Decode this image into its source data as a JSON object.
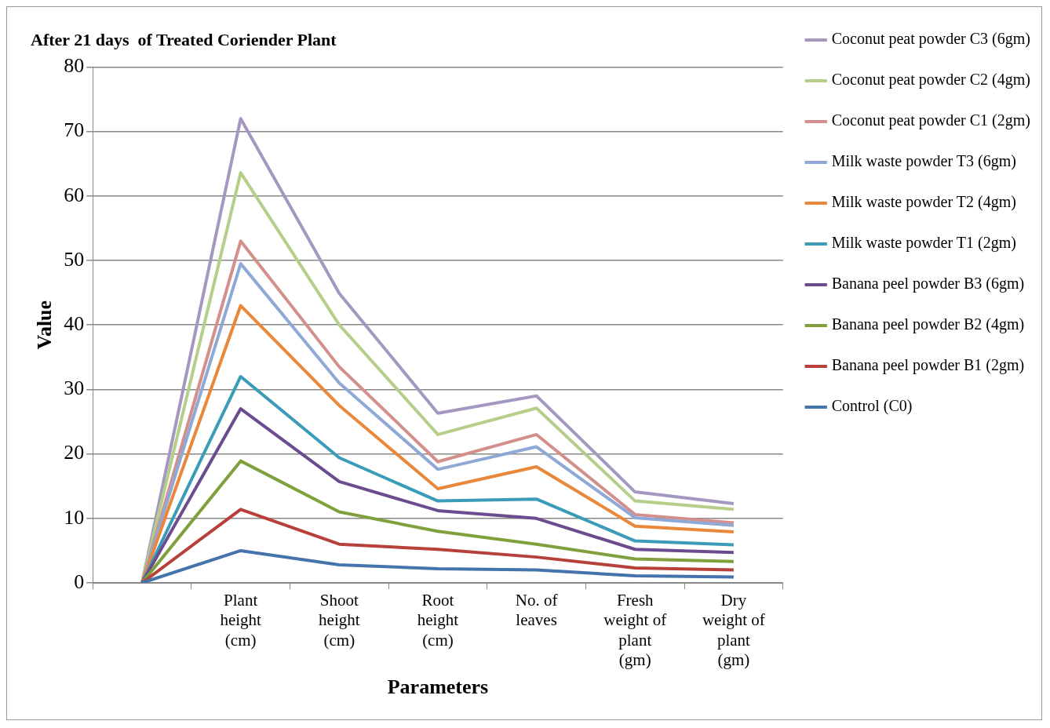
{
  "chart_data": {
    "type": "line",
    "title": "After 21 days  of Treated Coriender Plant",
    "xlabel": "Parameters",
    "ylabel": "Value",
    "categories": [
      null,
      "Plant height (cm)",
      "Shoot height (cm)",
      "Root height (cm)",
      "No. of leaves",
      "Fresh weight of plant (gm)",
      "Dry weight of plant (gm)"
    ],
    "ylim": [
      0,
      80
    ],
    "yticks": [
      0,
      10,
      20,
      30,
      40,
      50,
      60,
      70,
      80
    ],
    "grid": "y",
    "legend": "right",
    "marker": "none",
    "series": [
      {
        "name": "Coconut peat powder C3 (6gm)",
        "color": "#a598c0",
        "values": [
          0,
          72,
          44.9,
          26.3,
          29,
          14.1,
          12.3
        ]
      },
      {
        "name": "Coconut peat powder C2 (4gm)",
        "color": "#b5cf8b",
        "values": [
          0,
          63.6,
          40,
          23,
          27.1,
          12.7,
          11.4
        ]
      },
      {
        "name": "Coconut peat powder C1 (2gm)",
        "color": "#d38f8c",
        "values": [
          0,
          53,
          33.5,
          18.8,
          23,
          10.6,
          9.3
        ]
      },
      {
        "name": "Milk waste powder T3 (6gm)",
        "color": "#8fa9d6",
        "values": [
          0,
          49.5,
          31,
          17.6,
          21.1,
          10.1,
          8.9
        ]
      },
      {
        "name": "Milk waste powder T2 (4gm)",
        "color": "#e9883a",
        "values": [
          0,
          43,
          27.5,
          14.6,
          18,
          8.8,
          7.9
        ]
      },
      {
        "name": "Milk waste powder T1 (2gm)",
        "color": "#3a9cb8",
        "values": [
          0,
          32,
          19.4,
          12.7,
          13,
          6.5,
          5.9
        ]
      },
      {
        "name": "Banana peel powder B3 (6gm)",
        "color": "#6b4c8f",
        "values": [
          0,
          27,
          15.7,
          11.2,
          10,
          5.2,
          4.7
        ]
      },
      {
        "name": "Banana peel powder B2 (4gm)",
        "color": "#7fa03c",
        "values": [
          0,
          18.9,
          11,
          8,
          6,
          3.7,
          3.3
        ]
      },
      {
        "name": "Banana peel powder B1 (2gm)",
        "color": "#b8403b",
        "values": [
          0,
          11.4,
          6,
          5.2,
          4,
          2.3,
          2
        ]
      },
      {
        "name": "Control (C0)",
        "color": "#4474ab",
        "values": [
          0,
          5,
          2.8,
          2.2,
          2,
          1.1,
          0.9
        ]
      }
    ]
  }
}
